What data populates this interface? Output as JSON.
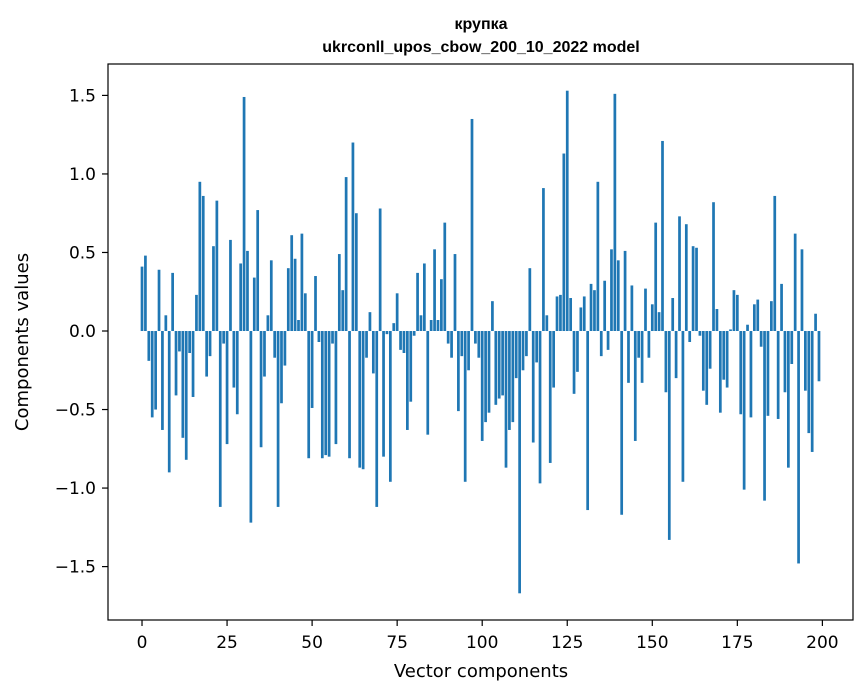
{
  "chart_data": {
    "type": "bar",
    "title_lines": [
      "крупка",
      "ukrconll_upos_cbow_200_10_2022 model"
    ],
    "xlabel": "Vector components",
    "ylabel": "Components values",
    "xlim": [
      -10,
      209
    ],
    "ylim": [
      -1.84,
      1.7
    ],
    "xticks": [
      0,
      25,
      50,
      75,
      100,
      125,
      150,
      175,
      200
    ],
    "yticks": [
      -1.5,
      -1.0,
      -0.5,
      0.0,
      0.5,
      1.0,
      1.5
    ],
    "ytick_labels": [
      "−1.5",
      "−1.0",
      "−0.5",
      "0.0",
      "0.5",
      "1.0",
      "1.5"
    ],
    "bar_color": "#1f77b4",
    "grid": false,
    "x": [
      0,
      1,
      2,
      3,
      4,
      5,
      6,
      7,
      8,
      9,
      10,
      11,
      12,
      13,
      14,
      15,
      16,
      17,
      18,
      19,
      20,
      21,
      22,
      23,
      24,
      25,
      26,
      27,
      28,
      29,
      30,
      31,
      32,
      33,
      34,
      35,
      36,
      37,
      38,
      39,
      40,
      41,
      42,
      43,
      44,
      45,
      46,
      47,
      48,
      49,
      50,
      51,
      52,
      53,
      54,
      55,
      56,
      57,
      58,
      59,
      60,
      61,
      62,
      63,
      64,
      65,
      66,
      67,
      68,
      69,
      70,
      71,
      72,
      73,
      74,
      75,
      76,
      77,
      78,
      79,
      80,
      81,
      82,
      83,
      84,
      85,
      86,
      87,
      88,
      89,
      90,
      91,
      92,
      93,
      94,
      95,
      96,
      97,
      98,
      99,
      100,
      101,
      102,
      103,
      104,
      105,
      106,
      107,
      108,
      109,
      110,
      111,
      112,
      113,
      114,
      115,
      116,
      117,
      118,
      119,
      120,
      121,
      122,
      123,
      124,
      125,
      126,
      127,
      128,
      129,
      130,
      131,
      132,
      133,
      134,
      135,
      136,
      137,
      138,
      139,
      140,
      141,
      142,
      143,
      144,
      145,
      146,
      147,
      148,
      149,
      150,
      151,
      152,
      153,
      154,
      155,
      156,
      157,
      158,
      159,
      160,
      161,
      162,
      163,
      164,
      165,
      166,
      167,
      168,
      169,
      170,
      171,
      172,
      173,
      174,
      175,
      176,
      177,
      178,
      179,
      180,
      181,
      182,
      183,
      184,
      185,
      186,
      187,
      188,
      189,
      190,
      191,
      192,
      193,
      194,
      195,
      196,
      197,
      198,
      199
    ],
    "values": [
      0.41,
      0.48,
      -0.19,
      -0.55,
      -0.5,
      0.39,
      -0.63,
      0.1,
      -0.9,
      0.37,
      -0.41,
      -0.13,
      -0.68,
      -0.82,
      -0.14,
      -0.42,
      0.23,
      0.95,
      0.86,
      -0.29,
      -0.16,
      0.54,
      0.83,
      -1.12,
      -0.08,
      -0.72,
      0.58,
      -0.36,
      -0.53,
      0.43,
      1.49,
      0.51,
      -1.22,
      0.34,
      0.77,
      -0.74,
      -0.29,
      0.1,
      0.45,
      -0.17,
      -1.12,
      -0.46,
      -0.22,
      0.4,
      0.61,
      0.46,
      0.07,
      0.62,
      0.24,
      -0.81,
      -0.49,
      0.35,
      -0.07,
      -0.81,
      -0.79,
      -0.8,
      -0.08,
      -0.72,
      0.49,
      0.26,
      0.98,
      -0.81,
      1.2,
      0.75,
      -0.87,
      -0.88,
      -0.17,
      0.12,
      -0.27,
      -1.12,
      0.78,
      -0.8,
      -0.02,
      -0.96,
      0.05,
      0.24,
      -0.12,
      -0.14,
      -0.63,
      -0.45,
      -0.03,
      0.37,
      0.1,
      0.43,
      -0.66,
      0.07,
      0.52,
      0.07,
      0.33,
      0.69,
      -0.08,
      -0.17,
      0.49,
      -0.51,
      -0.16,
      -0.96,
      -0.25,
      1.35,
      -0.08,
      -0.17,
      -0.7,
      -0.58,
      -0.52,
      0.19,
      -0.47,
      -0.43,
      -0.41,
      -0.87,
      -0.63,
      -0.58,
      -0.3,
      -1.67,
      -0.25,
      -0.16,
      0.4,
      -0.71,
      -0.2,
      -0.97,
      0.91,
      0.1,
      -0.84,
      -0.36,
      0.22,
      0.23,
      1.13,
      1.53,
      0.21,
      -0.4,
      -0.26,
      0.15,
      0.22,
      -1.14,
      0.3,
      0.26,
      0.95,
      -0.16,
      0.32,
      -0.12,
      0.52,
      1.51,
      0.45,
      -1.17,
      0.51,
      -0.33,
      0.29,
      -0.7,
      -0.17,
      -0.33,
      0.27,
      -0.17,
      0.17,
      0.69,
      0.12,
      1.21,
      -0.39,
      -1.33,
      0.21,
      -0.3,
      0.73,
      -0.96,
      0.68,
      -0.07,
      0.54,
      0.53,
      -0.03,
      -0.38,
      -0.47,
      -0.24,
      0.82,
      0.14,
      -0.52,
      -0.31,
      -0.36,
      0.01,
      0.26,
      0.23,
      -0.53,
      -1.01,
      0.04,
      -0.55,
      0.17,
      0.2,
      -0.1,
      -1.08,
      -0.54,
      0.19,
      0.86,
      -0.56,
      0.3,
      -0.39,
      -0.87,
      -0.21,
      0.62,
      -1.48,
      0.52,
      -0.38,
      -0.65,
      -0.77,
      0.11,
      -0.32
    ]
  }
}
